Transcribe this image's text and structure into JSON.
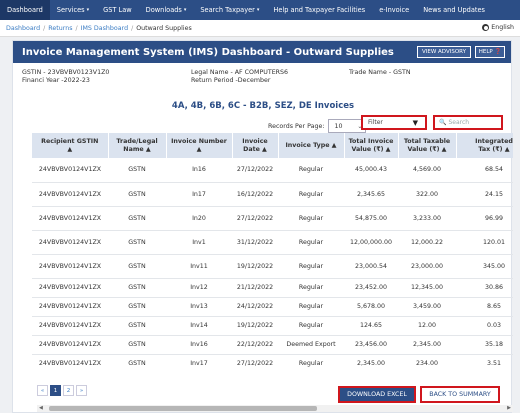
{
  "nav": {
    "items": [
      {
        "label": "Dashboard",
        "caret": false
      },
      {
        "label": "Services",
        "caret": true
      },
      {
        "label": "GST Law",
        "caret": false
      },
      {
        "label": "Downloads",
        "caret": true
      },
      {
        "label": "Search Taxpayer",
        "caret": true
      },
      {
        "label": "Help and Taxpayer Facilities",
        "caret": false
      },
      {
        "label": "e-Invoice",
        "caret": false
      },
      {
        "label": "News and Updates",
        "caret": false
      }
    ]
  },
  "breadcrumb": {
    "items": [
      "Dashboard",
      "Returns",
      "IMS Dashboard"
    ],
    "current": "Outward Supplies",
    "separator": "/",
    "language": "English"
  },
  "panel": {
    "title": "Invoice Management System (IMS) Dashboard - Outward Supplies",
    "view_advisory": "VIEW ADVISORY",
    "help": "HELP"
  },
  "info": {
    "gstin": "GSTIN - 23VBVBV0123V1Z0",
    "fy": "Financi Year -2022-23",
    "legal_name": "Legal Name - AF COMPUTERS6",
    "return_period": "Return Period -December",
    "trade_name": "Trade Name - GSTN"
  },
  "subtitle": "4A, 4B, 6B, 6C - B2B, SEZ, DE Invoices",
  "controls": {
    "records_label": "Records Per Page:",
    "records_value": "10",
    "filter_label": "Filter",
    "search_placeholder": "Search"
  },
  "table": {
    "headers": [
      {
        "line1": "Recipient GSTIN",
        "line2": "▲"
      },
      {
        "line1": "Trade/Legal",
        "line2": "Name ▲"
      },
      {
        "line1": "Invoice Number ▲",
        "line2": ""
      },
      {
        "line1": "Invoice",
        "line2": "Date ▲"
      },
      {
        "line1": "Invoice Type ▲",
        "line2": ""
      },
      {
        "line1": "Total Invoice",
        "line2": "Value (₹) ▲"
      },
      {
        "line1": "Total Taxable",
        "line2": "Value (₹) ▲"
      },
      {
        "line1": "Integrated",
        "line2": "Tax (₹) ▲"
      }
    ],
    "rows": [
      [
        "24VBVBV0124V1ZX",
        "GSTN",
        "In16",
        "27/12/2022",
        "Regular",
        "45,000.43",
        "4,569.00",
        "68.54"
      ],
      [
        "24VBVBV0124V1ZX",
        "GSTN",
        "In17",
        "16/12/2022",
        "Regular",
        "2,345.65",
        "322.00",
        "24.15"
      ],
      [
        "24VBVBV0124V1ZX",
        "GSTN",
        "In20",
        "27/12/2022",
        "Regular",
        "54,875.00",
        "3,233.00",
        "96.99"
      ],
      [
        "24VBVBV0124V1ZX",
        "GSTN",
        "Inv1",
        "31/12/2022",
        "Regular",
        "12,00,000.00",
        "12,000.22",
        "120.01"
      ],
      [
        "24VBVBV0124V1ZX",
        "GSTN",
        "Inv11",
        "19/12/2022",
        "Regular",
        "23,000.54",
        "23,000.00",
        "345.00"
      ],
      [
        "24VBVBV0124V1ZX",
        "GSTN",
        "Inv12",
        "21/12/2022",
        "Regular",
        "23,452.00",
        "12,345.00",
        "30.86"
      ],
      [
        "24VBVBV0124V1ZX",
        "GSTN",
        "Inv13",
        "24/12/2022",
        "Regular",
        "5,678.00",
        "3,459.00",
        "8.65"
      ],
      [
        "24VBVBV0124V1ZX",
        "GSTN",
        "Inv14",
        "19/12/2022",
        "Regular",
        "124.65",
        "12.00",
        "0.03"
      ],
      [
        "24VBVBV0124V1ZX",
        "GSTN",
        "Inv16",
        "22/12/2022",
        "Deemed Export",
        "23,456.00",
        "2,345.00",
        "35.18"
      ],
      [
        "24VBVBV0124V1ZX",
        "GSTN",
        "Inv17",
        "27/12/2022",
        "Regular",
        "2,345.00",
        "234.00",
        "3.51"
      ]
    ]
  },
  "pagination": {
    "prev": "«",
    "pages": [
      "1",
      "2"
    ],
    "next": "»",
    "active": "1"
  },
  "scroll": {
    "left": "◀",
    "right": "▶"
  },
  "actions": {
    "download": "DOWNLOAD EXCEL",
    "back": "BACK TO SUMMARY"
  },
  "colors": {
    "brand": "#2c4e86",
    "highlight_border": "#d0161d",
    "header_bg": "#dbe3ef",
    "link": "#3b7dc4"
  }
}
